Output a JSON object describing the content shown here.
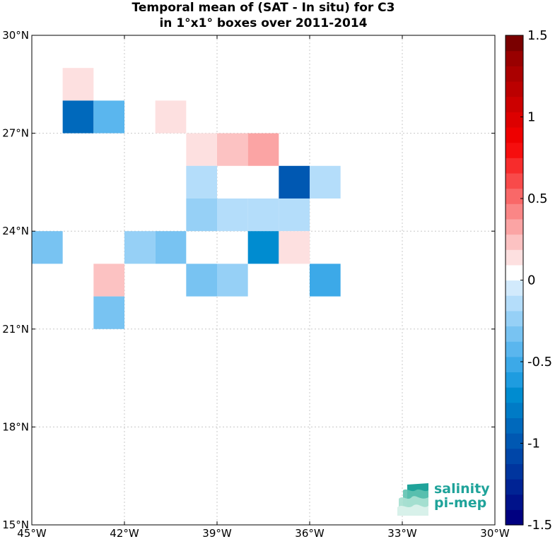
{
  "title": {
    "line1": "Temporal mean of (SAT - In situ) for C3",
    "line2": "in 1°x1° boxes over 2011-2014"
  },
  "logo": {
    "line1": "salinity",
    "line2": "pi-mep"
  },
  "chart_data": {
    "type": "heatmap",
    "x_range": [
      -45,
      -30
    ],
    "y_range": [
      15,
      30
    ],
    "x_ticks": [
      {
        "value": -45,
        "label": "45°W"
      },
      {
        "value": -42,
        "label": "42°W"
      },
      {
        "value": -39,
        "label": "39°W"
      },
      {
        "value": -36,
        "label": "36°W"
      },
      {
        "value": -33,
        "label": "33°W"
      },
      {
        "value": -30,
        "label": "30°W"
      }
    ],
    "y_ticks": [
      {
        "value": 15,
        "label": "15°N"
      },
      {
        "value": 18,
        "label": "18°N"
      },
      {
        "value": 21,
        "label": "21°N"
      },
      {
        "value": 24,
        "label": "24°N"
      },
      {
        "value": 27,
        "label": "27°N"
      },
      {
        "value": 30,
        "label": "30°N"
      }
    ],
    "grid": true,
    "colorbar": {
      "range": [
        -1.5,
        1.5
      ],
      "ticks": [
        {
          "value": 1.5,
          "label": "1.5"
        },
        {
          "value": 1,
          "label": "1"
        },
        {
          "value": 0.5,
          "label": "0.5"
        },
        {
          "value": 0,
          "label": "0"
        },
        {
          "value": -0.5,
          "label": "-0.5"
        },
        {
          "value": -1,
          "label": "-1"
        },
        {
          "value": -1.5,
          "label": "-1.5"
        }
      ],
      "colors": [
        "#000080",
        "#00128a",
        "#002394",
        "#00359e",
        "#0046a8",
        "#0058b2",
        "#0069bc",
        "#007bc6",
        "#008cd0",
        "#1e9ce0",
        "#3ca9e8",
        "#5ab6ee",
        "#78c3f2",
        "#96d0f6",
        "#b4ddfa",
        "#d2eafc",
        "#ffffff",
        "#fde0e0",
        "#fcc2c2",
        "#fba4a4",
        "#fa8686",
        "#f96868",
        "#f84a4a",
        "#f72c2c",
        "#f60e0e",
        "#ee0000",
        "#dd0000",
        "#cc0000",
        "#bb0000",
        "#aa0000",
        "#990000",
        "#7a0000"
      ]
    },
    "cells": [
      {
        "lon": -44,
        "lat": 28,
        "value": 0.15
      },
      {
        "lon": -44,
        "lat": 27,
        "value": -0.9
      },
      {
        "lon": -43,
        "lat": 27,
        "value": -0.45
      },
      {
        "lon": -41,
        "lat": 27,
        "value": 0.15
      },
      {
        "lon": -40,
        "lat": 26,
        "value": 0.15
      },
      {
        "lon": -39,
        "lat": 26,
        "value": 0.25
      },
      {
        "lon": -38,
        "lat": 26,
        "value": 0.35
      },
      {
        "lon": -40,
        "lat": 25,
        "value": -0.15
      },
      {
        "lon": -37,
        "lat": 25,
        "value": -1.0
      },
      {
        "lon": -36,
        "lat": 25,
        "value": -0.15
      },
      {
        "lon": -40,
        "lat": 24,
        "value": -0.25
      },
      {
        "lon": -39,
        "lat": 24,
        "value": -0.15
      },
      {
        "lon": -38,
        "lat": 24,
        "value": -0.15
      },
      {
        "lon": -37,
        "lat": 24,
        "value": -0.15
      },
      {
        "lon": -45,
        "lat": 23,
        "value": -0.35
      },
      {
        "lon": -42,
        "lat": 23,
        "value": -0.25
      },
      {
        "lon": -41,
        "lat": 23,
        "value": -0.35
      },
      {
        "lon": -38,
        "lat": 23,
        "value": -0.75
      },
      {
        "lon": -37,
        "lat": 23,
        "value": 0.15
      },
      {
        "lon": -43,
        "lat": 22,
        "value": 0.25
      },
      {
        "lon": -40,
        "lat": 22,
        "value": -0.35
      },
      {
        "lon": -39,
        "lat": 22,
        "value": -0.25
      },
      {
        "lon": -36,
        "lat": 22,
        "value": -0.5
      },
      {
        "lon": -43,
        "lat": 21,
        "value": -0.3
      }
    ]
  }
}
